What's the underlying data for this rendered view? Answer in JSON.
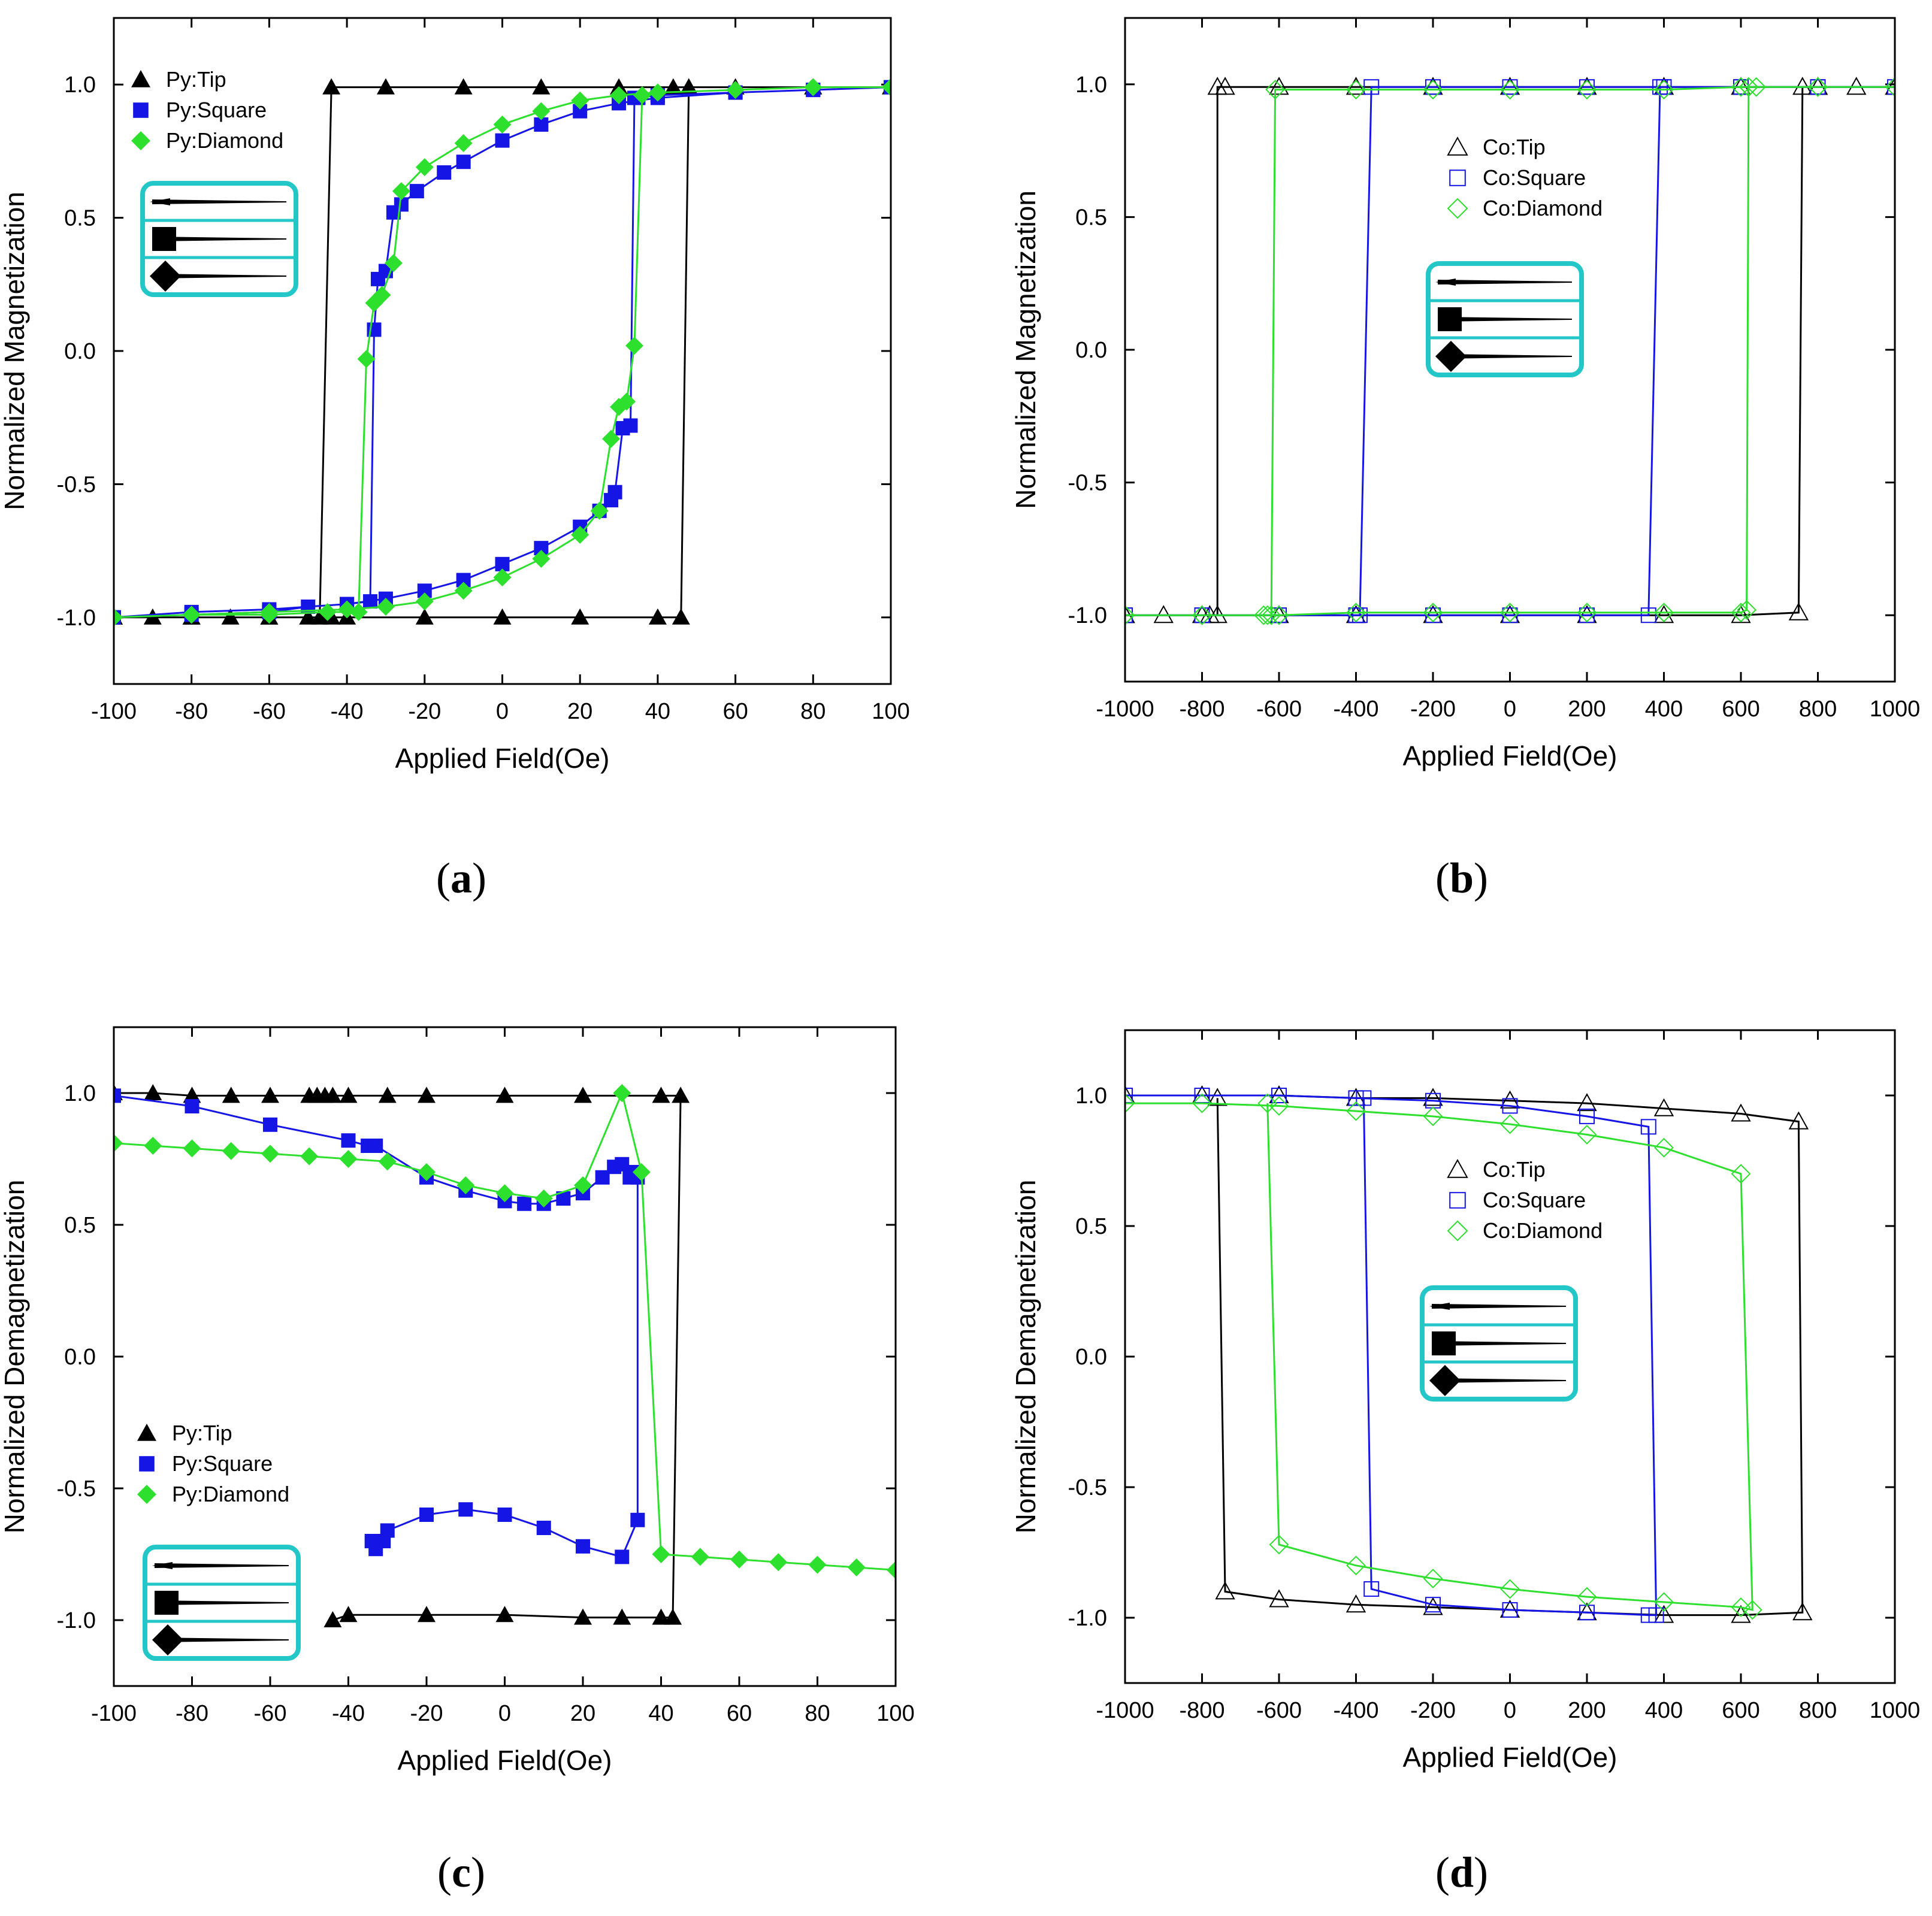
{
  "figure": {
    "labels": [
      "a",
      "b",
      "c",
      "d"
    ]
  },
  "chart_data": [
    {
      "id": "a",
      "type": "line",
      "xlabel": "Applied Field(Oe)",
      "ylabel": "Normalized Magnetization",
      "xlim": [
        -100,
        100
      ],
      "ylim": [
        -1.25,
        1.25
      ],
      "xticks": [
        -100,
        -80,
        -60,
        -40,
        -20,
        0,
        20,
        40,
        60,
        80,
        100
      ],
      "yticks": [
        -1.0,
        -0.5,
        0.0,
        0.5,
        1.0
      ],
      "ytick_labels": [
        "-1.0",
        "-0.5",
        "0.0",
        "0.5",
        "1.0"
      ],
      "legend": [
        "Py:Tip",
        "Py:Square",
        "Py:Diamond"
      ],
      "legend_position": "top-left",
      "inset_position": "left",
      "series": [
        {
          "name": "Py:Tip",
          "color": "#000000",
          "marker": "triangle",
          "x": [
            -100,
            -90,
            -80,
            -70,
            -60,
            -50,
            -47,
            -44,
            -30,
            -10,
            10,
            30,
            44,
            48,
            60,
            80,
            100,
            80,
            60,
            48,
            46,
            40,
            20,
            0,
            -20,
            -40,
            -44,
            -60,
            -80,
            -100
          ],
          "y": [
            -1.0,
            -1.0,
            -1.0,
            -1.0,
            -1.0,
            -1.0,
            -1.0,
            0.99,
            0.99,
            0.99,
            0.99,
            0.99,
            0.99,
            0.99,
            0.99,
            0.99,
            0.99,
            0.99,
            0.99,
            0.99,
            -1.0,
            -1.0,
            -1.0,
            -1.0,
            -1.0,
            -1.0,
            -1.0,
            -1.0,
            -1.0,
            -1.0
          ]
        },
        {
          "name": "Py:Square",
          "color": "#1515e6",
          "marker": "square",
          "x": [
            -100,
            -80,
            -60,
            -50,
            -40,
            -34,
            -33,
            -32,
            -30,
            -28,
            -26,
            -22,
            -15,
            -10,
            0,
            10,
            20,
            30,
            40,
            60,
            80,
            100,
            80,
            60,
            40,
            35,
            34,
            33,
            31,
            29,
            28,
            25,
            20,
            10,
            0,
            -10,
            -20,
            -30,
            -40,
            -60,
            -80,
            -100
          ],
          "y": [
            -1.0,
            -0.99,
            -0.98,
            -0.96,
            -0.95,
            -0.94,
            0.08,
            0.27,
            0.3,
            0.52,
            0.55,
            0.6,
            0.67,
            0.71,
            0.79,
            0.85,
            0.9,
            0.93,
            0.95,
            0.97,
            0.98,
            0.99,
            0.98,
            0.97,
            0.96,
            0.95,
            0.95,
            -0.28,
            -0.29,
            -0.53,
            -0.56,
            -0.6,
            -0.66,
            -0.74,
            -0.8,
            -0.86,
            -0.9,
            -0.93,
            -0.95,
            -0.97,
            -0.98,
            -1.0
          ]
        },
        {
          "name": "Py:Diamond",
          "color": "#2ee02e",
          "marker": "diamond",
          "x": [
            -100,
            -80,
            -60,
            -45,
            -37,
            -35,
            -33,
            -31,
            -28,
            -26,
            -20,
            -10,
            0,
            10,
            20,
            30,
            40,
            60,
            80,
            100,
            80,
            60,
            40,
            36,
            34,
            32,
            30,
            28,
            25,
            20,
            10,
            0,
            -10,
            -20,
            -30,
            -40,
            -60,
            -80,
            -100
          ],
          "y": [
            -1.0,
            -0.99,
            -0.99,
            -0.98,
            -0.98,
            -0.03,
            0.18,
            0.21,
            0.33,
            0.6,
            0.69,
            0.78,
            0.85,
            0.9,
            0.94,
            0.96,
            0.97,
            0.98,
            0.99,
            0.99,
            0.99,
            0.98,
            0.97,
            0.96,
            0.02,
            -0.19,
            -0.21,
            -0.33,
            -0.6,
            -0.69,
            -0.78,
            -0.85,
            -0.9,
            -0.94,
            -0.96,
            -0.97,
            -0.98,
            -0.99,
            -1.0
          ]
        }
      ]
    },
    {
      "id": "b",
      "type": "line",
      "xlabel": "Applied Field(Oe)",
      "ylabel": "Normalized Magnetization",
      "xlim": [
        -1000,
        1000
      ],
      "ylim": [
        -1.25,
        1.25
      ],
      "xticks": [
        -1000,
        -800,
        -600,
        -400,
        -200,
        0,
        200,
        400,
        600,
        800,
        1000
      ],
      "yticks": [
        -1.0,
        -0.5,
        0.0,
        0.5,
        1.0
      ],
      "ytick_labels": [
        "-1.0",
        "-0.5",
        "0.0",
        "0.5",
        "1.0"
      ],
      "legend": [
        "Co:Tip",
        "Co:Square",
        "Co:Diamond"
      ],
      "legend_position": "center",
      "inset_position": "center",
      "series": [
        {
          "name": "Co:Tip",
          "color": "#000000",
          "marker": "triangle-open",
          "x": [
            -1000,
            -900,
            -780,
            -760,
            -760,
            -740,
            -600,
            -400,
            -200,
            0,
            200,
            400,
            600,
            800,
            1000,
            900,
            800,
            760,
            750,
            600,
            400,
            200,
            0,
            -200,
            -400,
            -600,
            -800,
            -1000
          ],
          "y": [
            -1.0,
            -1.0,
            -1.0,
            -1.0,
            0.99,
            0.99,
            0.99,
            0.99,
            0.99,
            0.99,
            0.99,
            0.99,
            0.99,
            0.99,
            0.99,
            0.99,
            0.99,
            0.99,
            -0.99,
            -1.0,
            -1.0,
            -1.0,
            -1.0,
            -1.0,
            -1.0,
            -1.0,
            -1.0,
            -1.0
          ]
        },
        {
          "name": "Co:Square",
          "color": "#1515e6",
          "marker": "square-open",
          "x": [
            -1000,
            -800,
            -600,
            -400,
            -390,
            -360,
            -200,
            0,
            200,
            400,
            600,
            800,
            1000,
            800,
            600,
            400,
            390,
            360,
            200,
            0,
            -200,
            -400,
            -600,
            -800,
            -1000
          ],
          "y": [
            -1.0,
            -1.0,
            -1.0,
            -1.0,
            -1.0,
            0.99,
            0.99,
            0.99,
            0.99,
            0.99,
            0.99,
            0.99,
            0.99,
            0.99,
            0.99,
            0.99,
            0.99,
            -1.0,
            -1.0,
            -1.0,
            -1.0,
            -1.0,
            -1.0,
            -1.0,
            -1.0
          ]
        },
        {
          "name": "Co:Diamond",
          "color": "#2ee02e",
          "marker": "diamond-open",
          "x": [
            -1000,
            -800,
            -640,
            -620,
            -610,
            -400,
            -200,
            0,
            200,
            400,
            600,
            620,
            800,
            1000,
            800,
            640,
            620,
            615,
            600,
            400,
            200,
            0,
            -200,
            -400,
            -600,
            -630,
            -800,
            -1000
          ],
          "y": [
            -1.0,
            -1.0,
            -1.0,
            -1.0,
            0.98,
            0.98,
            0.98,
            0.98,
            0.98,
            0.98,
            0.99,
            0.99,
            0.99,
            0.99,
            0.99,
            0.99,
            0.99,
            -0.98,
            -0.99,
            -0.99,
            -0.99,
            -0.99,
            -0.99,
            -0.99,
            -1.0,
            -1.0,
            -1.0,
            -1.0
          ]
        }
      ]
    },
    {
      "id": "c",
      "type": "line",
      "xlabel": "Applied Field(Oe)",
      "ylabel": "Normalized Demagnetization",
      "xlim": [
        -100,
        100
      ],
      "ylim": [
        -1.25,
        1.25
      ],
      "xticks": [
        -100,
        -80,
        -60,
        -40,
        -20,
        0,
        20,
        40,
        60,
        80,
        100
      ],
      "yticks": [
        -1.0,
        -0.5,
        0.0,
        0.5,
        1.0
      ],
      "ytick_labels": [
        "-1.0",
        "-0.5",
        "0.0",
        "0.5",
        "1.0"
      ],
      "legend": [
        "Py:Tip",
        "Py:Square",
        "Py:Diamond"
      ],
      "legend_position": "bottom-left",
      "inset_position": "bottom-left",
      "series": [
        {
          "name": "Py:Tip",
          "color": "#000000",
          "marker": "triangle",
          "x": [
            -100,
            -90,
            -80,
            -70,
            -60,
            -50,
            -48,
            -46,
            -44,
            -40,
            -30,
            -20,
            0,
            20,
            40,
            45,
            43,
            40,
            30,
            20,
            0,
            -20,
            -40,
            -44
          ],
          "y": [
            1.0,
            1.0,
            0.99,
            0.99,
            0.99,
            0.99,
            0.99,
            0.99,
            0.99,
            0.99,
            0.99,
            0.99,
            0.99,
            0.99,
            0.99,
            0.99,
            -0.99,
            -0.99,
            -0.99,
            -0.99,
            -0.98,
            -0.98,
            -0.98,
            -1.0
          ]
        },
        {
          "name": "Py:Square",
          "color": "#1515e6",
          "marker": "square",
          "x": [
            -100,
            -80,
            -60,
            -40,
            -35,
            -33,
            -20,
            -10,
            0,
            5,
            10,
            15,
            20,
            25,
            28,
            30,
            32,
            33,
            34,
            34,
            30,
            20,
            10,
            0,
            -10,
            -20,
            -30,
            -31,
            -32,
            -33,
            -34
          ],
          "y": [
            0.99,
            0.95,
            0.88,
            0.82,
            0.8,
            0.8,
            0.68,
            0.63,
            0.59,
            0.58,
            0.58,
            0.6,
            0.62,
            0.68,
            0.72,
            0.73,
            0.68,
            0.7,
            0.68,
            -0.62,
            -0.76,
            -0.72,
            -0.65,
            -0.6,
            -0.58,
            -0.6,
            -0.66,
            -0.7,
            -0.7,
            -0.73,
            -0.7
          ]
        },
        {
          "name": "Py:Diamond",
          "color": "#2ee02e",
          "marker": "diamond",
          "x": [
            -100,
            -90,
            -80,
            -70,
            -60,
            -50,
            -40,
            -30,
            -20,
            -10,
            0,
            10,
            20,
            30,
            35,
            40,
            50,
            60,
            70,
            80,
            90,
            100
          ],
          "y": [
            0.81,
            0.8,
            0.79,
            0.78,
            0.77,
            0.76,
            0.75,
            0.74,
            0.7,
            0.65,
            0.62,
            0.6,
            0.65,
            1.0,
            0.7,
            -0.75,
            -0.76,
            -0.77,
            -0.78,
            -0.79,
            -0.8,
            -0.81
          ]
        }
      ]
    },
    {
      "id": "d",
      "type": "line",
      "xlabel": "Applied Field(Oe)",
      "ylabel": "Normalized Demagnetization",
      "xlim": [
        -1000,
        1000
      ],
      "ylim": [
        -1.25,
        1.25
      ],
      "xticks": [
        -1000,
        -800,
        -600,
        -400,
        -200,
        0,
        200,
        400,
        600,
        800,
        1000
      ],
      "yticks": [
        -1.0,
        -0.5,
        0.0,
        0.5,
        1.0
      ],
      "ytick_labels": [
        "-1.0",
        "-0.5",
        "0.0",
        "0.5",
        "1.0"
      ],
      "legend": [
        "Co:Tip",
        "Co:Square",
        "Co:Diamond"
      ],
      "legend_position": "center",
      "inset_position": "center-right",
      "series": [
        {
          "name": "Co:Tip",
          "color": "#000000",
          "marker": "triangle-open",
          "x": [
            -1000,
            -800,
            -600,
            -400,
            -200,
            0,
            200,
            400,
            600,
            750,
            760,
            600,
            400,
            200,
            0,
            -200,
            -400,
            -600,
            -740,
            -760
          ],
          "y": [
            1.0,
            1.0,
            1.0,
            0.99,
            0.99,
            0.98,
            0.97,
            0.95,
            0.93,
            0.9,
            -0.98,
            -0.99,
            -0.99,
            -0.98,
            -0.97,
            -0.96,
            -0.95,
            -0.93,
            -0.9,
            0.99
          ]
        },
        {
          "name": "Co:Square",
          "color": "#1515e6",
          "marker": "square-open",
          "x": [
            -1000,
            -800,
            -600,
            -400,
            -200,
            0,
            200,
            360,
            380,
            360,
            200,
            0,
            -200,
            -360,
            -380
          ],
          "y": [
            1.0,
            1.0,
            1.0,
            0.99,
            0.98,
            0.96,
            0.92,
            0.88,
            -0.99,
            -0.99,
            -0.98,
            -0.97,
            -0.95,
            -0.89,
            0.99
          ]
        },
        {
          "name": "Co:Diamond",
          "color": "#2ee02e",
          "marker": "diamond-open",
          "x": [
            -1000,
            -800,
            -600,
            -400,
            -200,
            0,
            200,
            400,
            600,
            630,
            600,
            400,
            200,
            0,
            -200,
            -400,
            -600,
            -630
          ],
          "y": [
            0.97,
            0.97,
            0.96,
            0.94,
            0.92,
            0.89,
            0.85,
            0.8,
            0.7,
            -0.97,
            -0.96,
            -0.94,
            -0.92,
            -0.89,
            -0.85,
            -0.8,
            -0.72,
            0.97
          ]
        }
      ]
    }
  ]
}
